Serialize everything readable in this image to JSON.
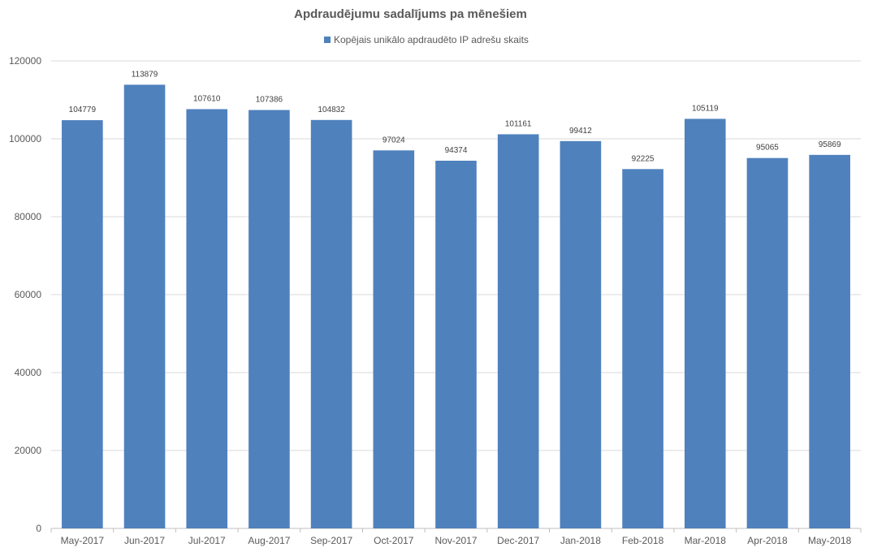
{
  "chart_data": {
    "type": "bar",
    "title": "Apdraudējumu sadalījums pa mēnešiem",
    "xlabel": "",
    "ylabel": "",
    "categories": [
      "May-2017",
      "Jun-2017",
      "Jul-2017",
      "Aug-2017",
      "Sep-2017",
      "Oct-2017",
      "Nov-2017",
      "Dec-2017",
      "Jan-2018",
      "Feb-2018",
      "Mar-2018",
      "Apr-2018",
      "May-2018"
    ],
    "series": [
      {
        "name": "Kopējais unikālo apdraudēto IP adrešu skaits",
        "values": [
          104779,
          113879,
          107610,
          107386,
          104832,
          97024,
          94374,
          101161,
          99412,
          92225,
          105119,
          95065,
          95869
        ],
        "color": "#4f81bd"
      }
    ],
    "ylim": [
      0,
      120000
    ],
    "yticks": [
      0,
      20000,
      40000,
      60000,
      80000,
      100000,
      120000
    ],
    "grid": true,
    "legend_position": "top",
    "data_labels": true
  }
}
